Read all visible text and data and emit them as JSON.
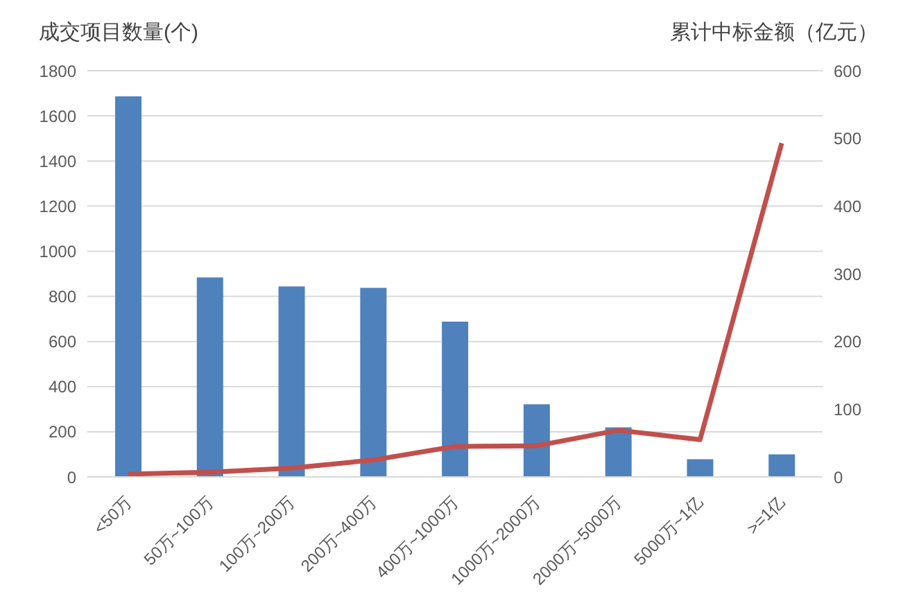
{
  "chart_data": {
    "type": "bar",
    "ylabel": "成交项目数量(个)",
    "y2label": "累计中标金额（亿元）",
    "categories": [
      "<50万",
      "50万~100万",
      "100万~200万",
      "200万~400万",
      "400万~1000万",
      "1000万~2000万",
      "2000万~5000万",
      "5000万~1亿",
      ">=1亿"
    ],
    "series": [
      {
        "color": "#4f81bd",
        "values": [
          1686,
          884,
          844,
          838,
          688,
          322,
          220,
          78,
          100
        ]
      },
      {
        "type": "line",
        "axis": "y2",
        "color": "#c0504d",
        "values": [
          4,
          7,
          13,
          25,
          45,
          46,
          69,
          55,
          493
        ]
      }
    ],
    "ylim": [
      0,
      1800
    ],
    "yticks": [
      0,
      200,
      400,
      600,
      800,
      1000,
      1200,
      1400,
      1600,
      1800
    ],
    "y2lim": [
      0,
      600
    ],
    "y2ticks": [
      0,
      100,
      200,
      300,
      400,
      500,
      600
    ],
    "grid": "y",
    "marker": "none",
    "line_style": "solid"
  }
}
